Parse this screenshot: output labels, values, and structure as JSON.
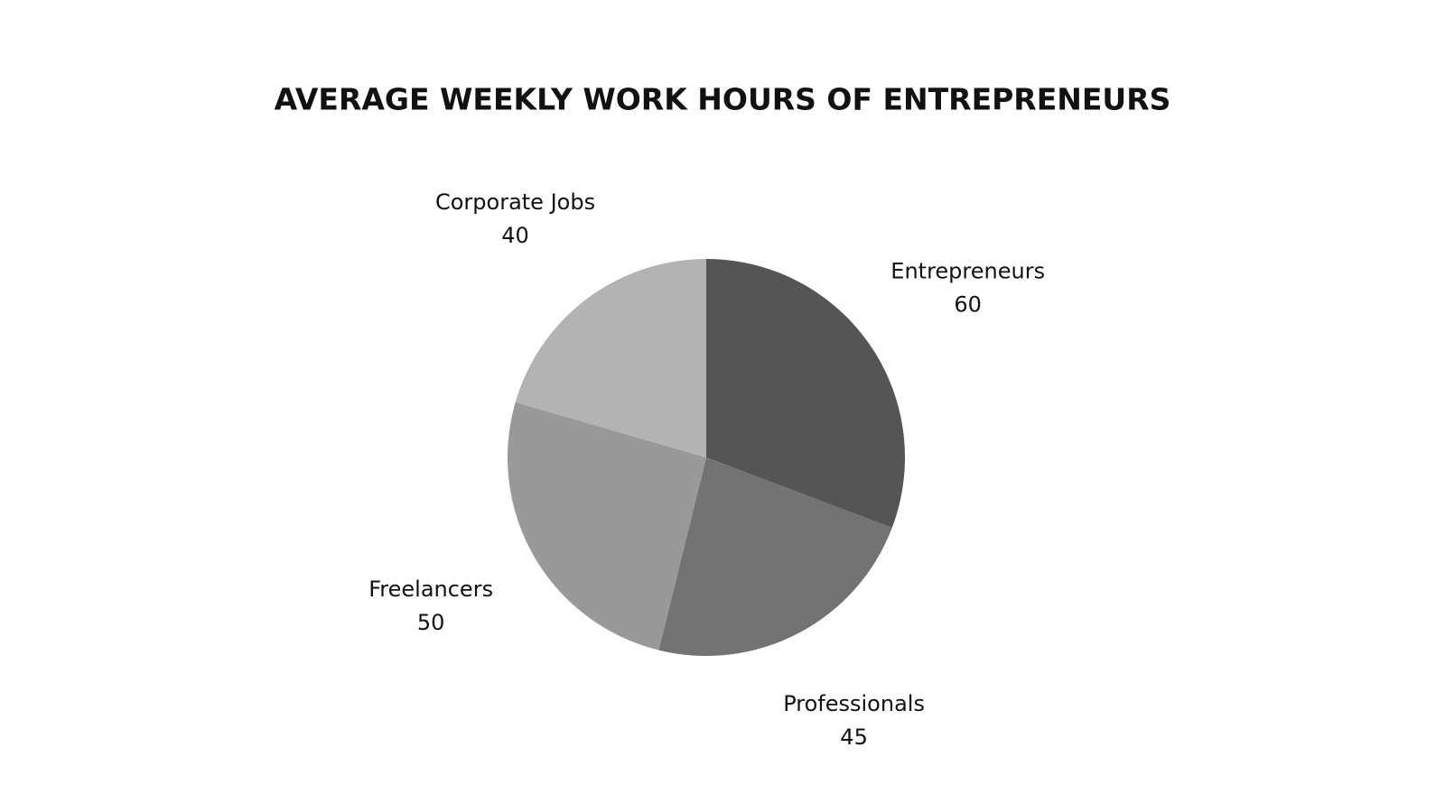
{
  "chart_data": {
    "type": "pie",
    "title": "AVERAGE WEEKLY WORK HOURS OF ENTREPRENEURS",
    "categories": [
      "Entrepreneurs",
      "Professionals",
      "Freelancers",
      "Corporate Jobs"
    ],
    "values": [
      60,
      45,
      50,
      40
    ],
    "colors": [
      "#555555",
      "#737373",
      "#999999",
      "#b3b3b3"
    ]
  }
}
